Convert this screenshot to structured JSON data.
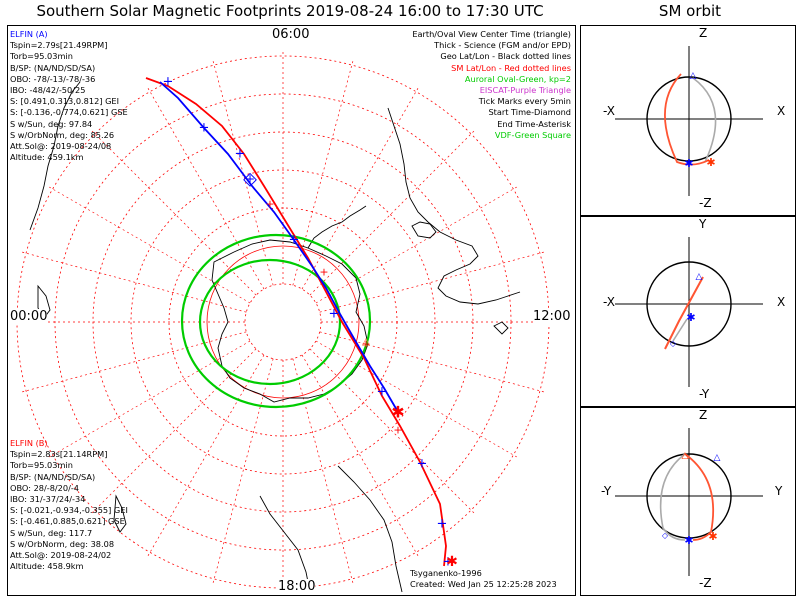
{
  "page": {
    "title": "Southern Solar Magnetic Footprints 2019-08-24 16:00 to 17:30 UTC",
    "sm_title": "SM orbit"
  },
  "elfin_a": {
    "name": "ELFIN (A)",
    "color": "#0000ff",
    "lines": [
      "Tspin=2.79s[21.49RPM]",
      "Torb=95.03min",
      "B/SP: (NA/ND/SD/SA)",
      "OBO: -78/-13/-78/-36",
      "IBO: -48/42/-50/25",
      "S: [0.491,0.313,0.812] GEI",
      "S: [-0.136,-0.774,0.621] GSE",
      "S w/Sun, deg: 97.84",
      "S w/OrbNorm, deg: 85.26",
      "Att.Sol@: 2019-08-24/08",
      "Altitude: 459.1km"
    ]
  },
  "elfin_b": {
    "name": "ELFIN (B)",
    "color": "#ff0000",
    "lines": [
      "Tspin=2.83s[21.14RPM]",
      "Torb=95.03min",
      "B/SP: (NA/ND/SD/SA)",
      "OBO: 28/-8/20/-4",
      "IBO: 31/-37/24/-34",
      "S: [-0.021,-0.934,-0.355] GEI",
      "S: [-0.461,0.885,0.621] GSE",
      "S w/Sun, deg: 117.7",
      "S w/OrbNorm, deg: 38.08",
      "Att.Sol@: 2019-08-24/02",
      "Altitude: 458.9km"
    ]
  },
  "legend": [
    {
      "text": "Earth/Oval View Center Time (triangle)",
      "color": "#000000"
    },
    {
      "text": "Thick - Science (FGM and/or EPD)",
      "color": "#000000"
    },
    {
      "text": "Geo Lat/Lon - Black dotted lines",
      "color": "#000000"
    },
    {
      "text": "SM Lat/Lon - Red dotted lines",
      "color": "#ff0000"
    },
    {
      "text": "Auroral Oval-Green, kp=2",
      "color": "#00cc00"
    },
    {
      "text": "EISCAT-Purple Triangle",
      "color": "#cc33cc"
    },
    {
      "text": "Tick Marks every 5min",
      "color": "#000000"
    },
    {
      "text": "Start Time-Diamond",
      "color": "#000000"
    },
    {
      "text": "End Time-Asterisk",
      "color": "#000000"
    },
    {
      "text": "VDF-Green Square",
      "color": "#00cc00"
    }
  ],
  "credits": {
    "author": "Tsyganenko-1996",
    "created": "Created: Wed Jan 25 12:25:28 2023"
  },
  "chart_data": [
    {
      "type": "polar-map",
      "clock_labels": {
        "top": "06:00",
        "left": "00:00",
        "right": "12:00",
        "bottom": "18:00"
      },
      "colors": {
        "sm_grid": "#ff0000",
        "oval": "#00cc00",
        "elfin_a": "#0000ff",
        "elfin_b": "#ff0000",
        "coast": "#000000"
      }
    },
    {
      "type": "orbit-projection",
      "labels": {
        "top": "Z",
        "bottom": "-Z",
        "left": "-X",
        "right": "X"
      }
    },
    {
      "type": "orbit-projection",
      "labels": {
        "top": "Y",
        "bottom": "-Y",
        "left": "-X",
        "right": "X"
      }
    },
    {
      "type": "orbit-projection",
      "labels": {
        "top": "Z",
        "bottom": "-Z",
        "left": "-Y",
        "right": "Y"
      }
    }
  ]
}
